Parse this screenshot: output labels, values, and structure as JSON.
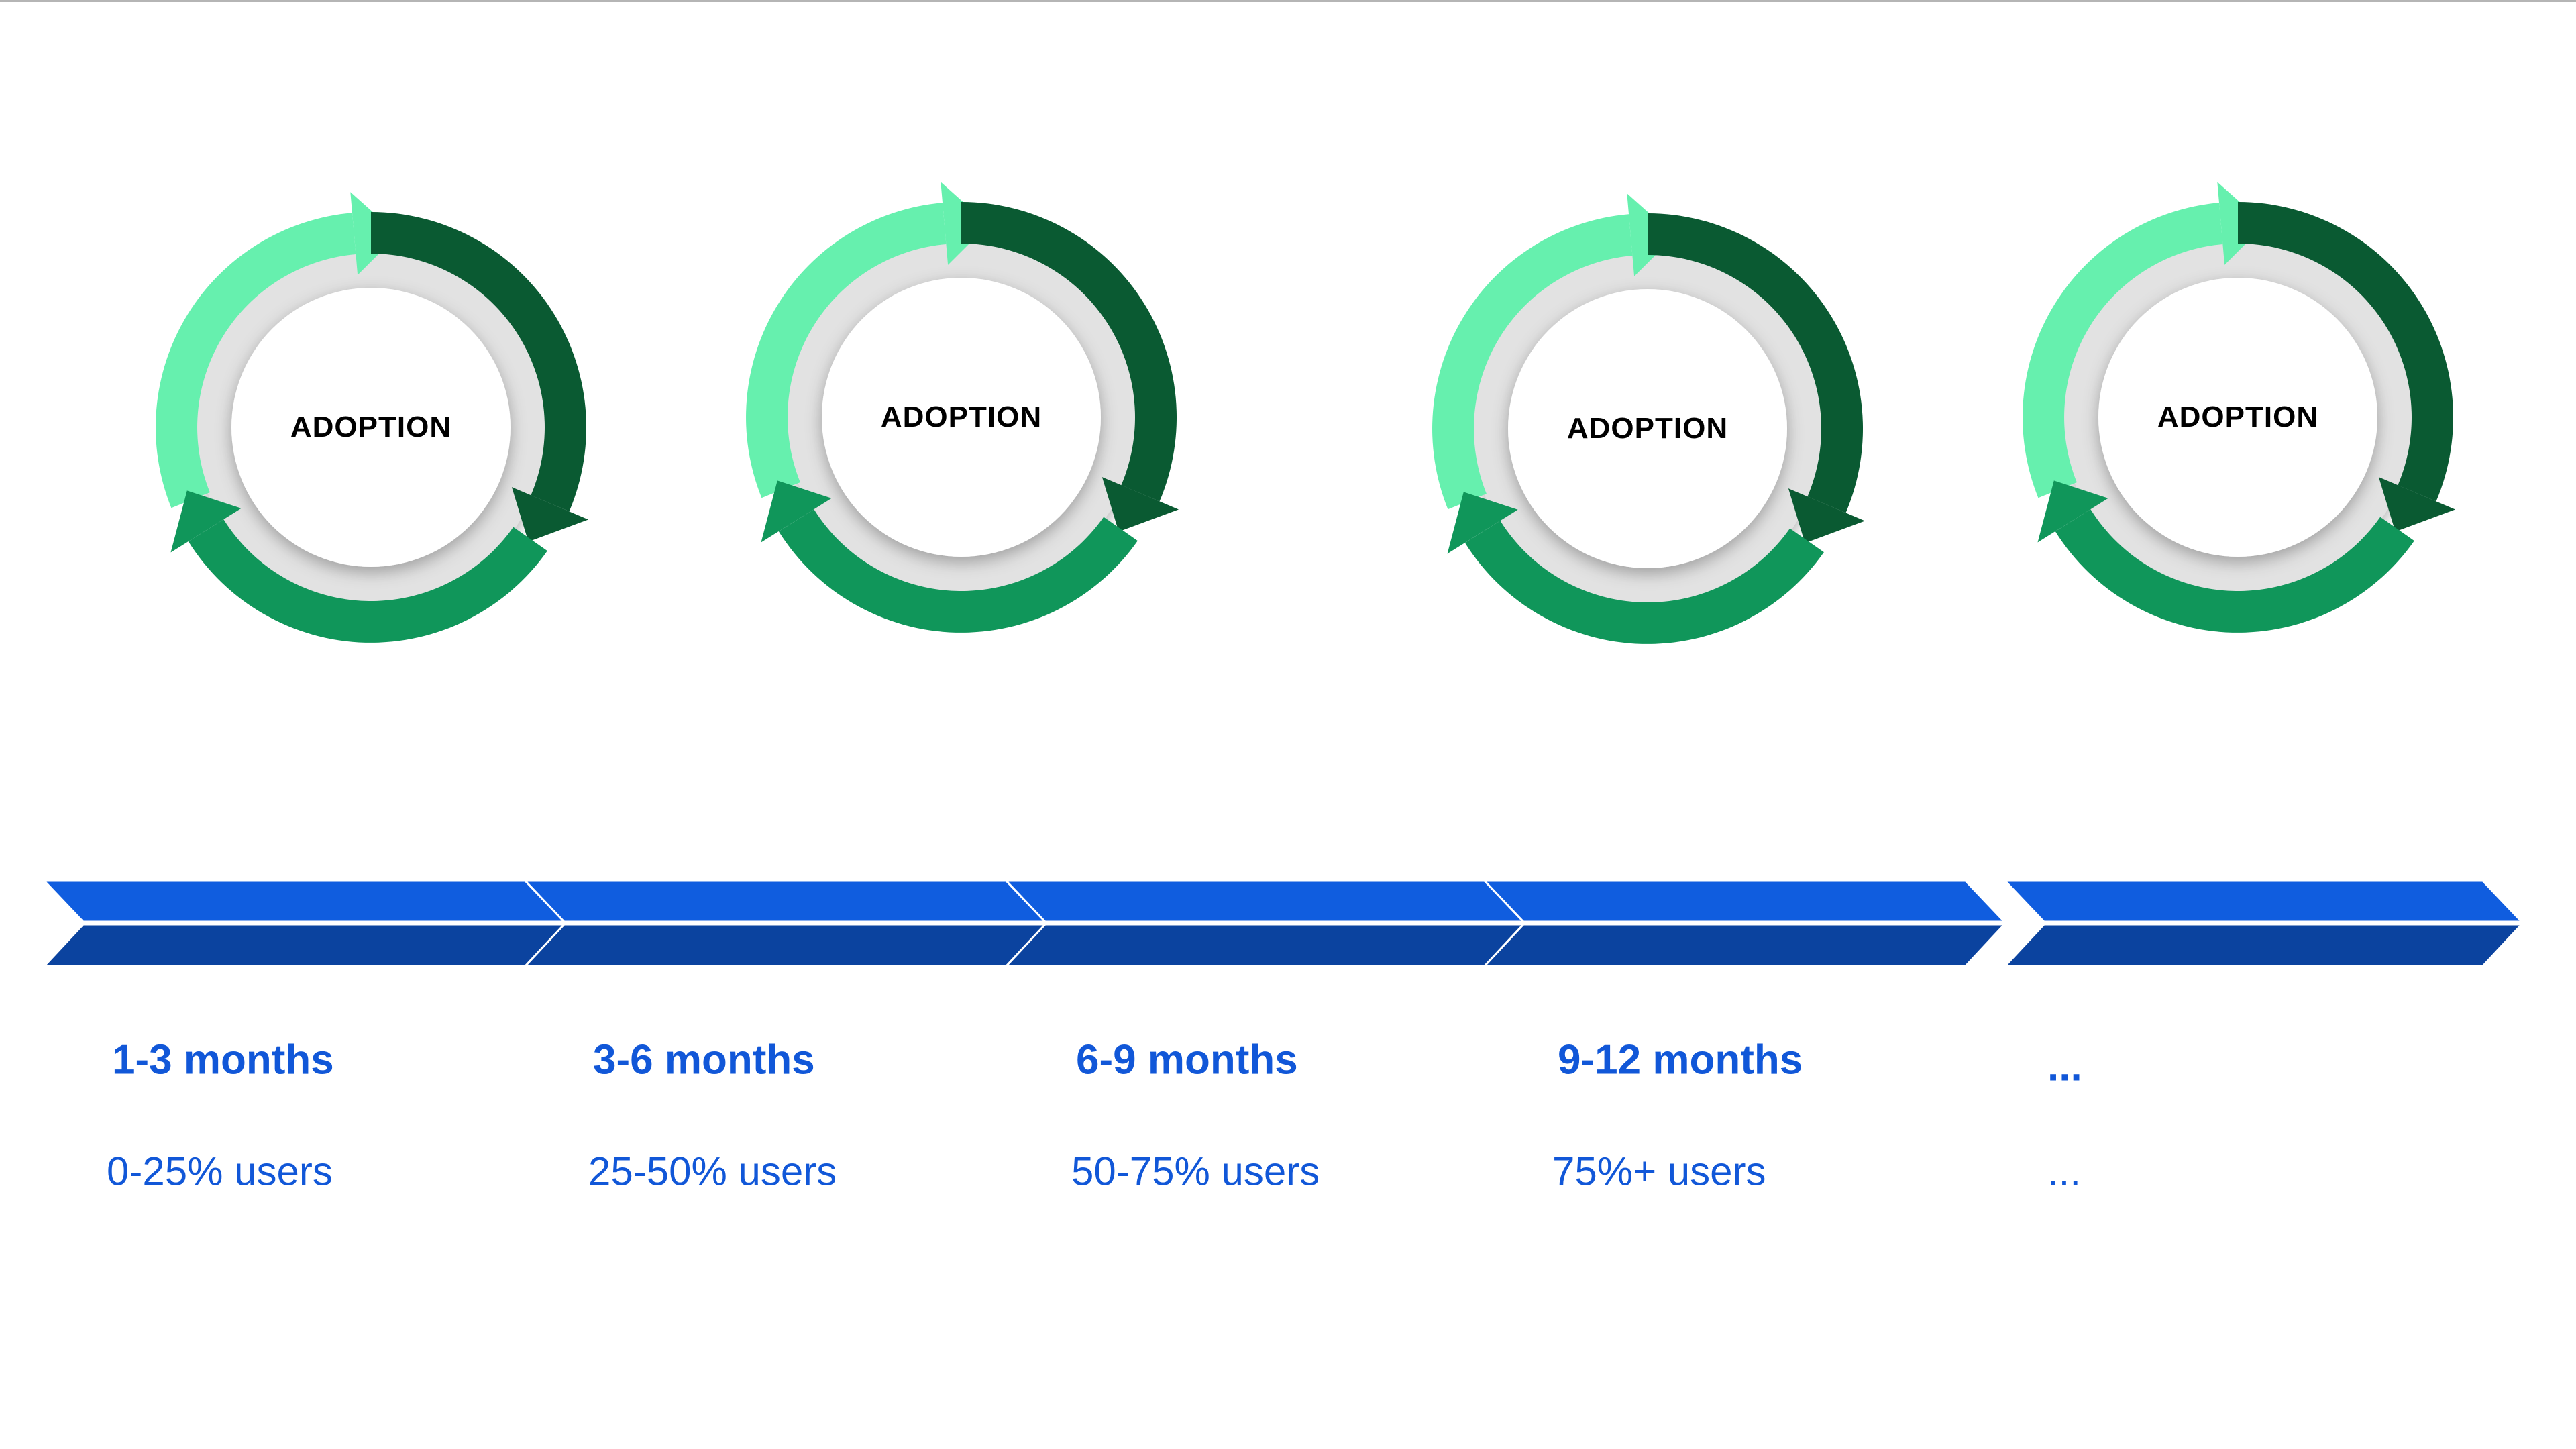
{
  "cycles": [
    {
      "label": "ADOPTION"
    },
    {
      "label": "ADOPTION"
    },
    {
      "label": "ADOPTION"
    },
    {
      "label": "ADOPTION"
    }
  ],
  "stages": [
    {
      "title": "1-3 months",
      "users": "0-25% users"
    },
    {
      "title": "3-6 months",
      "users": "25-50% users"
    },
    {
      "title": "6-9 months",
      "users": "50-75% users"
    },
    {
      "title": "9-12 months",
      "users": "75%+ users"
    },
    {
      "title": "...",
      "users": "..."
    }
  ],
  "colors": {
    "arrow_light": "#66f0ae",
    "arrow_dark": "#0a5a32",
    "arrow_mid": "#10965a",
    "ring_gray": "#e2e2e2",
    "chevron_top": "#105ddf",
    "chevron_bottom": "#0b439f",
    "text_blue": "#1157d8"
  }
}
